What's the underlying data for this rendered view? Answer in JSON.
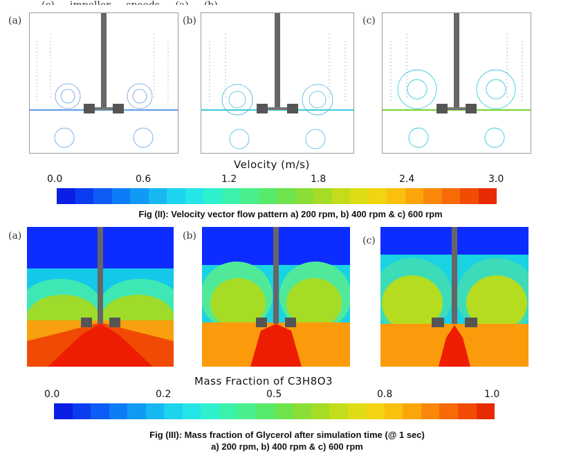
{
  "top_cut_text": "(c) ... impeller ... speeds ... (a) ... (b) ...",
  "panel_labels": [
    "(a)",
    "(b)",
    "(c)"
  ],
  "velocity_colorbar": {
    "title": "Velocity (m/s)",
    "ticks": [
      "0.0",
      "0.6",
      "1.2",
      "1.8",
      "2.4",
      "3.0"
    ],
    "colors": [
      "#0a1fe6",
      "#0b3df0",
      "#0d5cf5",
      "#0f7cf7",
      "#119af5",
      "#17b8f2",
      "#1ed3ee",
      "#25e6e6",
      "#2ef0cc",
      "#3bf2ab",
      "#49ef8a",
      "#58ea6b",
      "#6de34d",
      "#88de36",
      "#a6dc26",
      "#c4dc1c",
      "#dedc15",
      "#f2d411",
      "#fbc00e",
      "#fca50b",
      "#fb8708",
      "#f86a06",
      "#f14b04",
      "#e82a02"
    ]
  },
  "fig2_caption": "Fig (II): Velocity vector flow pattern a) 200 rpm, b) 400 rpm & c) 600 rpm",
  "mass_colorbar": {
    "title": "Mass Fraction of C3H8O3",
    "ticks": [
      "0.0",
      "0.2",
      "0.5",
      "0.8",
      "1.0"
    ],
    "colors": [
      "#0a1fe6",
      "#0b3df0",
      "#0d5cf5",
      "#0f7cf7",
      "#119af5",
      "#17b8f2",
      "#1ed3ee",
      "#25e6e6",
      "#2ef0cc",
      "#3bf2ab",
      "#49ef8a",
      "#58ea6b",
      "#6de34d",
      "#88de36",
      "#a6dc26",
      "#c4dc1c",
      "#dedc15",
      "#f2d411",
      "#fbc00e",
      "#fca50b",
      "#fb8708",
      "#f86a06",
      "#f14b04",
      "#e82a02"
    ]
  },
  "fig3_caption_line1": "Fig (III): Mass fraction of Glycerol after simulation time (@ 1 sec)",
  "fig3_caption_line2": "a) 200 rpm, b) 400 rpm & c) 600 rpm"
}
